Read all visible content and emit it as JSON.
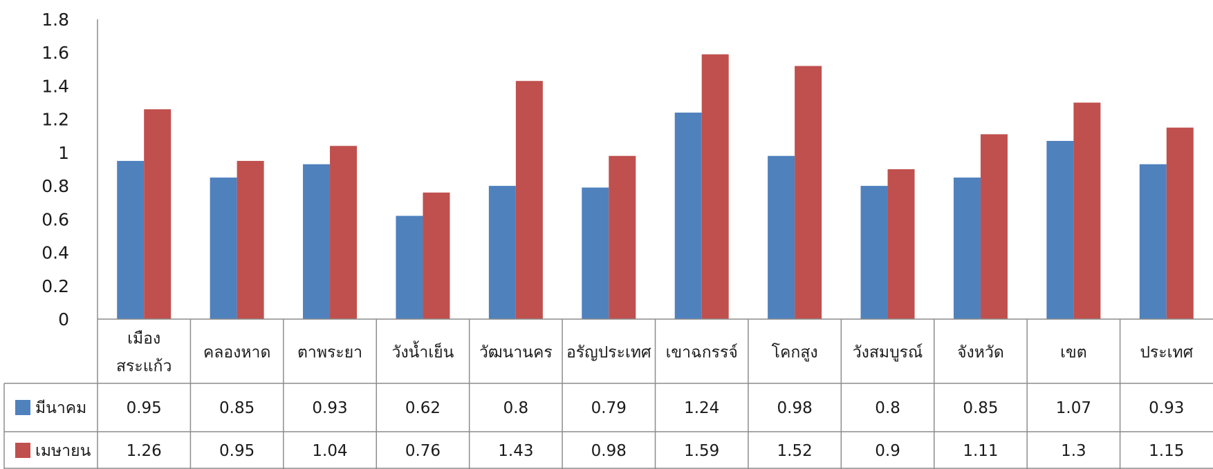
{
  "chart_data": {
    "type": "bar",
    "title": "",
    "xlabel": "",
    "ylabel": "",
    "ylim": [
      0,
      1.8
    ],
    "yticks": [
      "0",
      "0.2",
      "0.4",
      "0.6",
      "0.8",
      "1",
      "1.2",
      "1.4",
      "1.6",
      "1.8"
    ],
    "grid": false,
    "legend": "data-table-left",
    "categories": [
      [
        "เมือง",
        "สระแก้ว"
      ],
      [
        "คลองหาด"
      ],
      [
        "ตาพระยา"
      ],
      [
        "วังน้ำเย็น"
      ],
      [
        "วัฒนานคร"
      ],
      [
        "อรัญประเทศ"
      ],
      [
        "เขาฉกรรจ์"
      ],
      [
        "โคกสูง"
      ],
      [
        "วังสมบูรณ์"
      ],
      [
        "จังหวัด"
      ],
      [
        "เขต"
      ],
      [
        "ประเทศ"
      ]
    ],
    "series": [
      {
        "name": "มีนาคม",
        "color": "#4F81BD",
        "values": [
          0.95,
          0.85,
          0.93,
          0.62,
          0.8,
          0.79,
          1.24,
          0.98,
          0.8,
          0.85,
          1.07,
          0.93
        ],
        "labels": [
          "0.95",
          "0.85",
          "0.93",
          "0.62",
          "0.8",
          "0.79",
          "1.24",
          "0.98",
          "0.8",
          "0.85",
          "1.07",
          "0.93"
        ]
      },
      {
        "name": "เมษายน",
        "color": "#C0504D",
        "values": [
          1.26,
          0.95,
          1.04,
          0.76,
          1.43,
          0.98,
          1.59,
          1.52,
          0.9,
          1.11,
          1.3,
          1.15
        ],
        "labels": [
          "1.26",
          "0.95",
          "1.04",
          "0.76",
          "1.43",
          "0.98",
          "1.59",
          "1.52",
          "0.9",
          "1.11",
          "1.3",
          "1.15"
        ]
      }
    ]
  }
}
